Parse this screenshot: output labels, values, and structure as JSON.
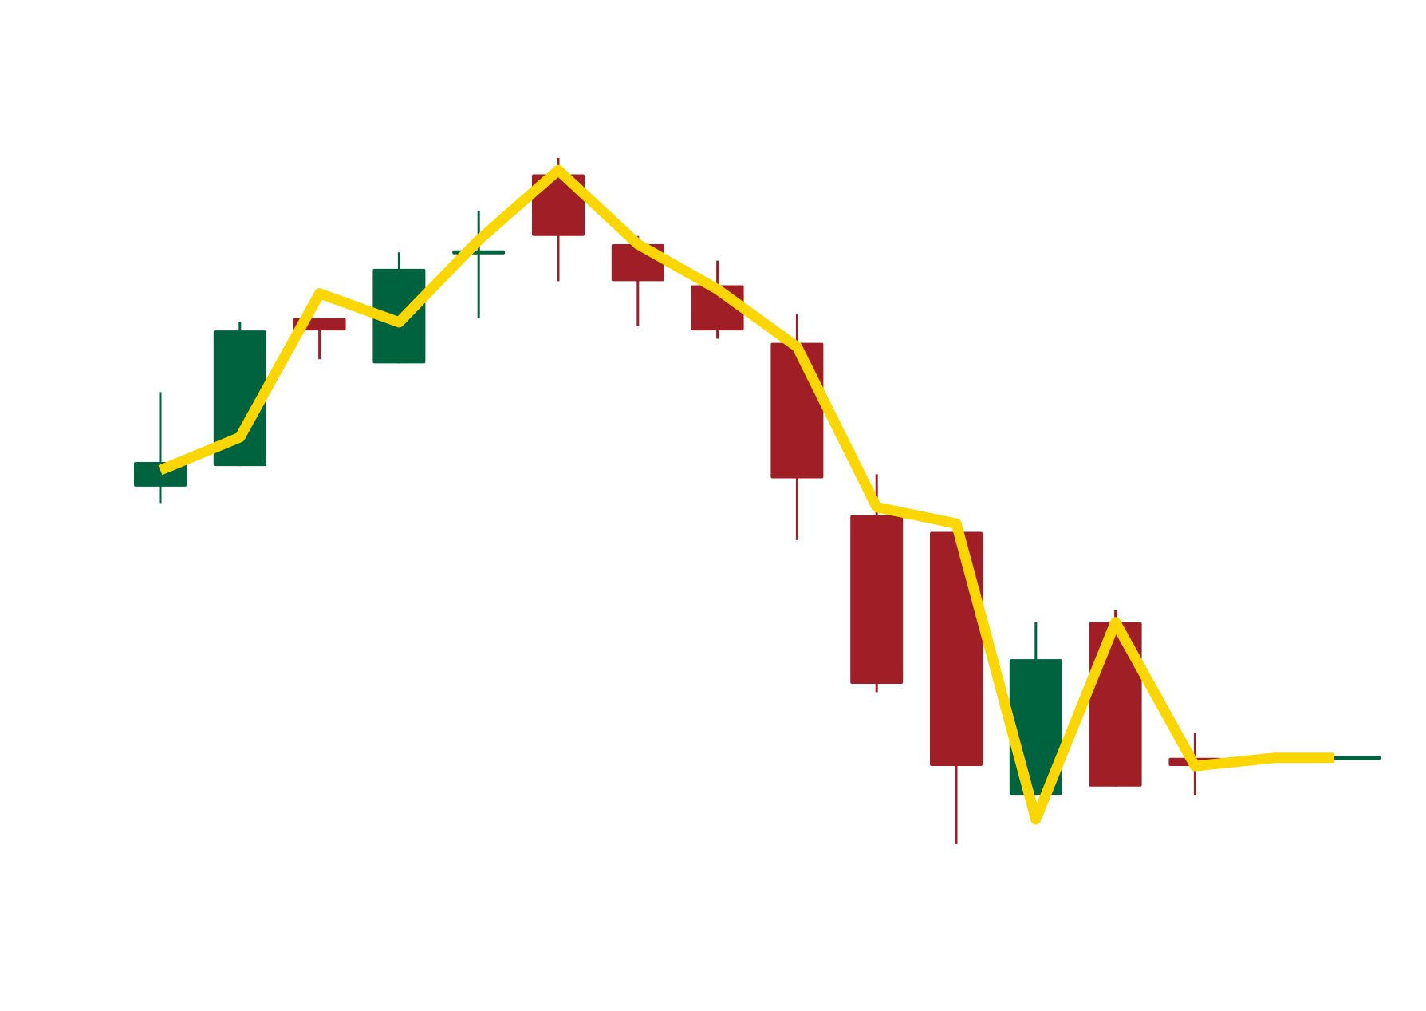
{
  "chart_data": {
    "type": "candlestick",
    "title": "",
    "xlabel": "",
    "ylabel": "",
    "axes_visible": false,
    "grid": false,
    "legend": "none",
    "x": [
      1,
      2,
      3,
      4,
      5,
      6,
      7,
      8,
      9,
      10,
      11,
      12,
      13,
      14,
      15,
      16
    ],
    "ylim": [
      0,
      100
    ],
    "candles": [
      {
        "open": 50.5,
        "high": 62.0,
        "low": 48.5,
        "close": 53.5
      },
      {
        "open": 53.0,
        "high": 70.5,
        "low": 53.0,
        "close": 69.5
      },
      {
        "open": 71.0,
        "high": 71.0,
        "low": 66.0,
        "close": 69.5
      },
      {
        "open": 65.5,
        "high": 79.0,
        "low": 65.5,
        "close": 77.0
      },
      {
        "open": 78.8,
        "high": 84.0,
        "low": 71.0,
        "close": 79.2
      },
      {
        "open": 88.5,
        "high": 90.5,
        "low": 75.5,
        "close": 81.0
      },
      {
        "open": 80.0,
        "high": 81.0,
        "low": 70.0,
        "close": 75.5
      },
      {
        "open": 75.0,
        "high": 78.0,
        "low": 68.5,
        "close": 69.5
      },
      {
        "open": 68.0,
        "high": 71.5,
        "low": 44.0,
        "close": 51.5
      },
      {
        "open": 47.0,
        "high": 52.0,
        "low": 25.5,
        "close": 26.5
      },
      {
        "open": 45.0,
        "high": 45.0,
        "low": 7.0,
        "close": 16.5
      },
      {
        "open": 13.0,
        "high": 34.0,
        "low": 13.0,
        "close": 29.5
      },
      {
        "open": 34.0,
        "high": 35.5,
        "low": 14.0,
        "close": 14.0
      },
      {
        "open": 17.5,
        "high": 20.5,
        "low": 13.0,
        "close": 16.5
      },
      {
        "open": 17.5,
        "high": 17.5,
        "low": 17.5,
        "close": 17.5
      },
      {
        "open": 17.5,
        "high": 17.5,
        "low": 17.5,
        "close": 17.5
      }
    ],
    "line": {
      "x": [
        1,
        2,
        3,
        4,
        5,
        6,
        7,
        8,
        9,
        10,
        11,
        12,
        13,
        14,
        15,
        15.75
      ],
      "values": [
        52.5,
        56.5,
        74.0,
        70.5,
        80.5,
        89.0,
        80.0,
        74.5,
        67.5,
        48.0,
        46.0,
        10.0,
        34.0,
        16.5,
        17.5,
        17.5
      ]
    },
    "colors": {
      "up": "#006340",
      "down": "#A01F27",
      "line": "#FCD600",
      "background": "#FFFFFF"
    }
  }
}
